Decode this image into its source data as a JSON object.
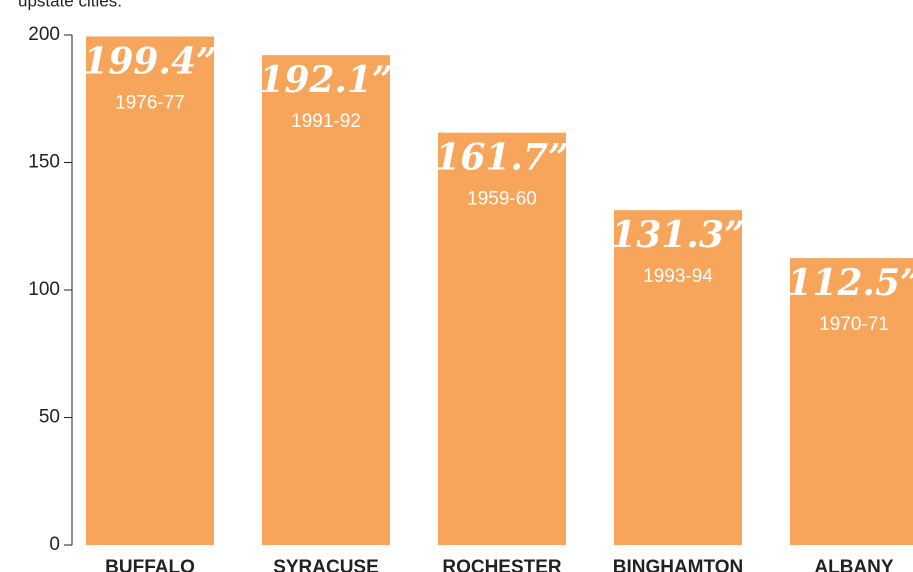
{
  "chart_data": {
    "type": "bar",
    "subtitle": "upstate cities.",
    "categories": [
      "BUFFALO",
      "SYRACUSE",
      "ROCHESTER",
      "BINGHAMTON",
      "ALBANY"
    ],
    "values": [
      199.4,
      192.1,
      161.7,
      131.3,
      112.5
    ],
    "value_labels": [
      "199.4”",
      "192.1”",
      "161.7”",
      "131.3”",
      "112.5”"
    ],
    "seasons": [
      "1976-77",
      "1991-92",
      "1959-60",
      "1993-94",
      "1970-71"
    ],
    "color": "#f6a55b",
    "ylim": [
      0,
      200
    ],
    "yticks": [
      0,
      50,
      100,
      150,
      200
    ]
  }
}
